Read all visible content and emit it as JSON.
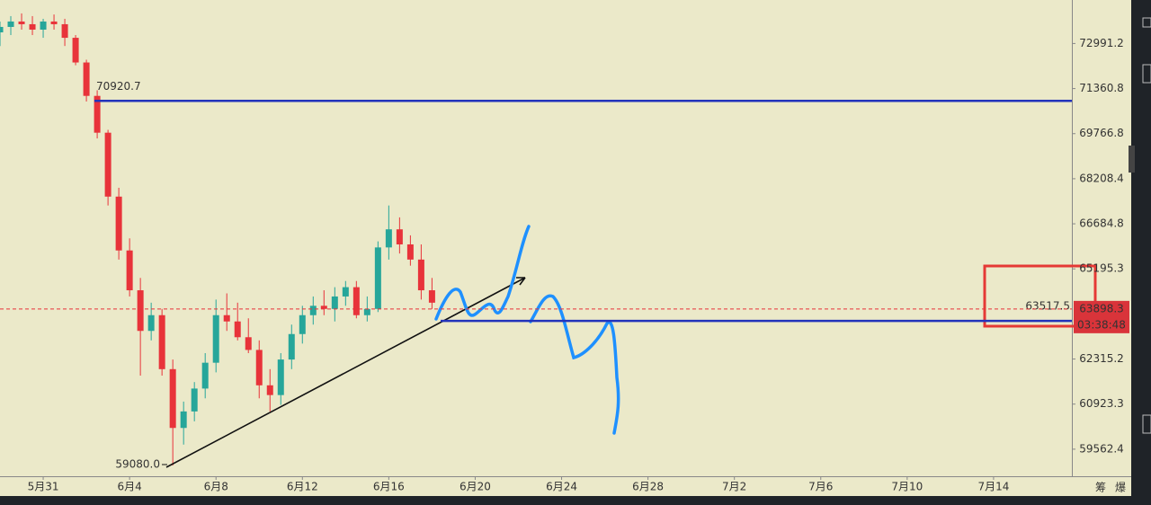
{
  "chart_data": {
    "type": "candlestick",
    "log_scale": true,
    "categories": [
      null,
      null,
      null,
      null,
      "5月31",
      null,
      null,
      null,
      null,
      null,
      null,
      null,
      "6月4",
      null,
      null,
      null,
      null,
      null,
      null,
      null,
      "6月8",
      null,
      null,
      null,
      null,
      null,
      null,
      null,
      "6月12",
      null,
      null,
      null,
      null,
      null,
      null,
      null,
      "6月16",
      null,
      null,
      null,
      null,
      null,
      null,
      null,
      "6月20",
      null,
      null,
      null,
      null,
      null,
      null,
      null,
      "6月24",
      null,
      null,
      null,
      null,
      null,
      null,
      null,
      "6月28",
      null,
      null,
      null,
      null,
      null,
      null,
      null,
      "7月2",
      null,
      null,
      null,
      null,
      null,
      null,
      null,
      "7月6",
      null,
      null,
      null,
      null,
      null,
      null,
      null,
      "7月10",
      null,
      null,
      null,
      null,
      null,
      null,
      null,
      "7月14",
      null,
      null,
      null,
      null,
      null,
      null,
      null
    ],
    "open": [
      73400,
      73600,
      73800,
      73700,
      73500,
      73800,
      73700,
      73200,
      72300,
      71100,
      69800,
      67600,
      65800,
      64500,
      63200,
      63700,
      62000,
      60200,
      60700,
      61400,
      62200,
      63700,
      63500,
      63000,
      62600,
      61500,
      61200,
      62300,
      63100,
      63700,
      64000,
      63900,
      64300,
      64600,
      63700,
      63900,
      65900,
      66500,
      66000,
      65500,
      64500,
      null,
      null,
      null,
      null,
      null,
      null,
      null,
      null,
      null,
      null,
      null,
      null,
      null,
      null,
      null,
      null,
      null,
      null,
      null,
      null,
      null,
      null,
      null,
      null,
      null,
      null,
      null,
      null,
      null,
      null,
      null,
      null,
      null,
      null,
      null,
      null,
      null,
      null,
      null,
      null,
      null,
      null,
      null,
      null,
      null,
      null,
      null,
      null,
      null,
      null,
      null,
      null,
      null,
      null,
      null,
      null,
      null,
      null,
      null
    ],
    "high": [
      73800,
      74000,
      74100,
      74000,
      73900,
      74060,
      73900,
      73300,
      72400,
      71300,
      69900,
      67900,
      66200,
      64900,
      64100,
      63900,
      62300,
      61000,
      61600,
      62500,
      64200,
      64400,
      64100,
      63600,
      62900,
      62000,
      62500,
      63400,
      64000,
      64300,
      64500,
      64600,
      64800,
      64800,
      64300,
      66100,
      67300,
      66900,
      66300,
      66000,
      64900,
      null,
      null,
      null,
      null,
      null,
      null,
      null,
      null,
      null,
      null,
      null,
      null,
      null,
      null,
      null,
      null,
      null,
      null,
      null,
      null,
      null,
      null,
      null,
      null,
      null,
      null,
      null,
      null,
      null,
      null,
      null,
      null,
      null,
      null,
      null,
      null,
      null,
      null,
      null,
      null,
      null,
      null,
      null,
      null,
      null,
      null,
      null,
      null,
      null,
      null,
      null,
      null,
      null,
      null,
      null,
      null,
      null,
      null,
      null
    ],
    "low": [
      72900,
      73300,
      73500,
      73300,
      73200,
      73500,
      72900,
      72200,
      70900,
      69600,
      67300,
      65500,
      64300,
      61800,
      62900,
      61800,
      59080,
      59700,
      60400,
      61100,
      61900,
      63200,
      62900,
      62500,
      61100,
      60700,
      60900,
      62000,
      62800,
      63400,
      63700,
      63500,
      64000,
      63600,
      63500,
      63800,
      65500,
      65700,
      65300,
      64200,
      63900,
      null,
      null,
      null,
      null,
      null,
      null,
      null,
      null,
      null,
      null,
      null,
      null,
      null,
      null,
      null,
      null,
      null,
      null,
      null,
      null,
      null,
      null,
      null,
      null,
      null,
      null,
      null,
      null,
      null,
      null,
      null,
      null,
      null,
      null,
      null,
      null,
      null,
      null,
      null,
      null,
      null,
      null,
      null,
      null,
      null,
      null,
      null,
      null,
      null,
      null,
      null,
      null,
      null,
      null,
      null,
      null,
      null,
      null,
      null
    ],
    "close": [
      73600,
      73800,
      73700,
      73500,
      73800,
      73700,
      73200,
      72300,
      71100,
      69800,
      67600,
      65800,
      64500,
      63200,
      63700,
      62000,
      60200,
      60700,
      61400,
      62200,
      63700,
      63500,
      63000,
      62600,
      61500,
      61200,
      62300,
      63100,
      63700,
      64000,
      63900,
      64300,
      64600,
      63700,
      63900,
      65900,
      66500,
      66000,
      65500,
      64500,
      64100,
      null,
      null,
      null,
      null,
      null,
      null,
      null,
      null,
      null,
      null,
      null,
      null,
      null,
      null,
      null,
      null,
      null,
      null,
      null,
      null,
      null,
      null,
      null,
      null,
      null,
      null,
      null,
      null,
      null,
      null,
      null,
      null,
      null,
      null,
      null,
      null,
      null,
      null,
      null,
      null,
      null,
      null,
      null,
      null,
      null,
      null,
      null,
      null,
      null,
      null,
      null,
      null,
      null,
      null,
      null,
      null,
      null,
      null,
      null
    ],
    "up_color": "#26a69a",
    "down_color": "#e8333a",
    "ylim": [
      58760,
      74600
    ],
    "yticks": [
      72991.2,
      71360.8,
      69766.8,
      68208.4,
      66684.8,
      65195.3,
      62315.2,
      60923.3,
      59562.4
    ],
    "price_lines": [
      {
        "value": 70920.7,
        "color": "#2233bb"
      },
      {
        "value": 63517.5,
        "color": "#2233bb"
      }
    ],
    "current_price": 63898.3,
    "countdown": "03:38:48",
    "low_annotation": "59080.0",
    "footer_labels": [
      "筹",
      "爆"
    ]
  }
}
